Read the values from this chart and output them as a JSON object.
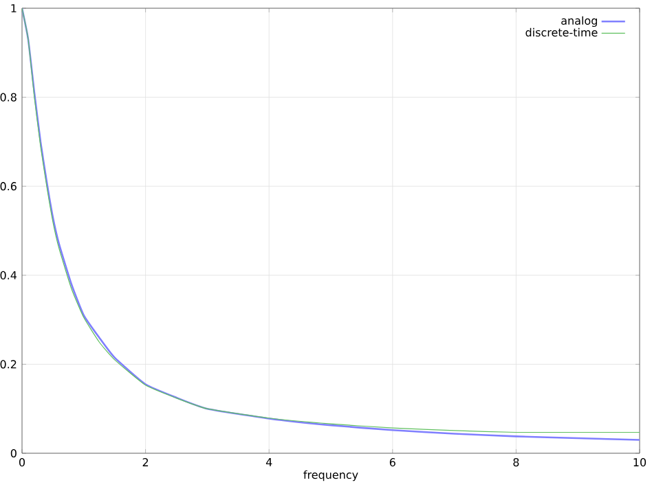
{
  "chart_data": {
    "type": "line",
    "xlabel": "frequency",
    "x": [
      0,
      0.1,
      0.2,
      0.3,
      0.4,
      0.5,
      0.6,
      0.8,
      1,
      1.25,
      1.5,
      2,
      2.5,
      3,
      4,
      5,
      6,
      7,
      8,
      9,
      10
    ],
    "series": [
      {
        "name": "analog",
        "color": "#7f7fff",
        "values": [
          1,
          0.93,
          0.81,
          0.7,
          0.61,
          0.53,
          0.47,
          0.38,
          0.31,
          0.26,
          0.215,
          0.155,
          0.125,
          0.1,
          0.078,
          0.063,
          0.052,
          0.044,
          0.038,
          0.034,
          0.03
        ]
      },
      {
        "name": "discrete-time",
        "color": "#5fbf5f",
        "values": [
          1,
          0.93,
          0.8,
          0.69,
          0.6,
          0.52,
          0.46,
          0.37,
          0.305,
          0.25,
          0.21,
          0.153,
          0.124,
          0.1,
          0.079,
          0.066,
          0.057,
          0.051,
          0.047,
          0.047,
          0.047
        ]
      }
    ],
    "xlim": [
      0,
      10
    ],
    "ylim": [
      0,
      1
    ],
    "xticks": [
      0,
      2,
      4,
      6,
      8,
      10
    ],
    "yticks": [
      0,
      0.2,
      0.4,
      0.6,
      0.8,
      1
    ],
    "grid": true,
    "legend": "top right",
    "marker": "none",
    "line_style": "solid"
  }
}
